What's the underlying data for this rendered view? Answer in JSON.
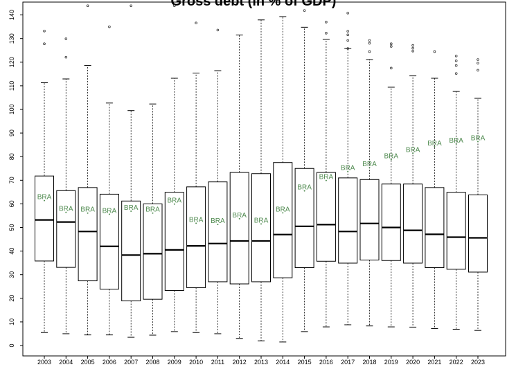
{
  "chart_data": {
    "type": "boxplot",
    "title": "Gross debt (in % of GDP)",
    "xlabel": "",
    "ylabel": "",
    "ylim": [
      -5,
      145
    ],
    "yticks": [
      0,
      10,
      20,
      30,
      40,
      50,
      60,
      70,
      80,
      90,
      100,
      110,
      120,
      130,
      140
    ],
    "categories": [
      "2003",
      "2004",
      "2005",
      "2006",
      "2007",
      "2008",
      "2009",
      "2010",
      "2011",
      "2012",
      "2013",
      "2014",
      "2015",
      "2016",
      "2017",
      "2018",
      "2019",
      "2020",
      "2021",
      "2022",
      "2023"
    ],
    "boxes": [
      {
        "year": "2003",
        "min": 5.5,
        "q1": 35.8,
        "median": 53.2,
        "q3": 71.8,
        "max": 111.3,
        "outliers": [
          127.8,
          133.2
        ]
      },
      {
        "year": "2004",
        "min": 5.0,
        "q1": 33.1,
        "median": 52.3,
        "q3": 65.6,
        "max": 112.9,
        "outliers": [
          122.1,
          129.9
        ]
      },
      {
        "year": "2005",
        "min": 4.5,
        "q1": 27.4,
        "median": 48.3,
        "q3": 66.9,
        "max": 118.6,
        "outliers": [
          143.9
        ]
      },
      {
        "year": "2006",
        "min": 4.5,
        "q1": 23.9,
        "median": 42.0,
        "q3": 64.1,
        "max": 102.7,
        "outliers": [
          135.0
        ]
      },
      {
        "year": "2007",
        "min": 3.5,
        "q1": 18.9,
        "median": 38.3,
        "q3": 61.2,
        "max": 99.5,
        "outliers": [
          143.9
        ]
      },
      {
        "year": "2008",
        "min": 4.4,
        "q1": 19.6,
        "median": 38.9,
        "q3": 60.0,
        "max": 102.3,
        "outliers": []
      },
      {
        "year": "2009",
        "min": 5.9,
        "q1": 23.3,
        "median": 40.5,
        "q3": 64.9,
        "max": 113.2,
        "outliers": [
          143.9
        ]
      },
      {
        "year": "2010",
        "min": 5.5,
        "q1": 24.5,
        "median": 42.2,
        "q3": 67.2,
        "max": 115.4,
        "outliers": [
          136.6
        ]
      },
      {
        "year": "2011",
        "min": 5.0,
        "q1": 27.0,
        "median": 43.2,
        "q3": 69.3,
        "max": 116.4,
        "outliers": [
          133.6
        ]
      },
      {
        "year": "2012",
        "min": 3.0,
        "q1": 26.1,
        "median": 44.3,
        "q3": 73.3,
        "max": 131.5,
        "outliers": []
      },
      {
        "year": "2013",
        "min": 2.0,
        "q1": 27.0,
        "median": 44.3,
        "q3": 72.8,
        "max": 137.9,
        "outliers": []
      },
      {
        "year": "2014",
        "min": 1.5,
        "q1": 28.7,
        "median": 47.0,
        "q3": 77.5,
        "max": 139.3,
        "outliers": []
      },
      {
        "year": "2015",
        "min": 5.9,
        "q1": 33.0,
        "median": 50.5,
        "q3": 75.0,
        "max": 134.8,
        "outliers": [
          141.9
        ]
      },
      {
        "year": "2016",
        "min": 7.9,
        "q1": 35.7,
        "median": 51.2,
        "q3": 73.3,
        "max": 129.7,
        "outliers": [
          132.3,
          137.0
        ]
      },
      {
        "year": "2017",
        "min": 8.8,
        "q1": 34.9,
        "median": 48.3,
        "q3": 71.0,
        "max": 125.8,
        "outliers": [
          125.8,
          129.2,
          131.6,
          133.1,
          140.8
        ]
      },
      {
        "year": "2018",
        "min": 8.3,
        "q1": 36.2,
        "median": 51.7,
        "q3": 70.3,
        "max": 121.1,
        "outliers": [
          124.5,
          128.0,
          129.2
        ]
      },
      {
        "year": "2019",
        "min": 7.9,
        "q1": 36.0,
        "median": 50.0,
        "q3": 68.4,
        "max": 109.4,
        "outliers": [
          117.5,
          126.7,
          127.8
        ]
      },
      {
        "year": "2020",
        "min": 7.8,
        "q1": 34.9,
        "median": 48.8,
        "q3": 68.4,
        "max": 114.2,
        "outliers": [
          124.7,
          125.9,
          127.1
        ]
      },
      {
        "year": "2021",
        "min": 7.2,
        "q1": 33.0,
        "median": 47.1,
        "q3": 66.9,
        "max": 113.2,
        "outliers": [
          124.5
        ]
      },
      {
        "year": "2022",
        "min": 6.9,
        "q1": 32.3,
        "median": 45.9,
        "q3": 64.9,
        "max": 107.6,
        "outliers": [
          115.2,
          118.6,
          120.6,
          122.6
        ]
      },
      {
        "year": "2023",
        "min": 6.4,
        "q1": 31.1,
        "median": 45.6,
        "q3": 63.8,
        "max": 104.7,
        "outliers": [
          116.6,
          119.6,
          121.1
        ]
      }
    ],
    "highlight": {
      "label": "BRA",
      "color": "#4f8a4f",
      "values": [
        61.4,
        56.4,
        56.1,
        55.6,
        56.9,
        56.1,
        59.9,
        51.8,
        51.3,
        53.7,
        51.5,
        56.2,
        65.5,
        69.9,
        73.7,
        75.3,
        78.7,
        81.4,
        84.2,
        85.4,
        86.4
      ]
    }
  }
}
